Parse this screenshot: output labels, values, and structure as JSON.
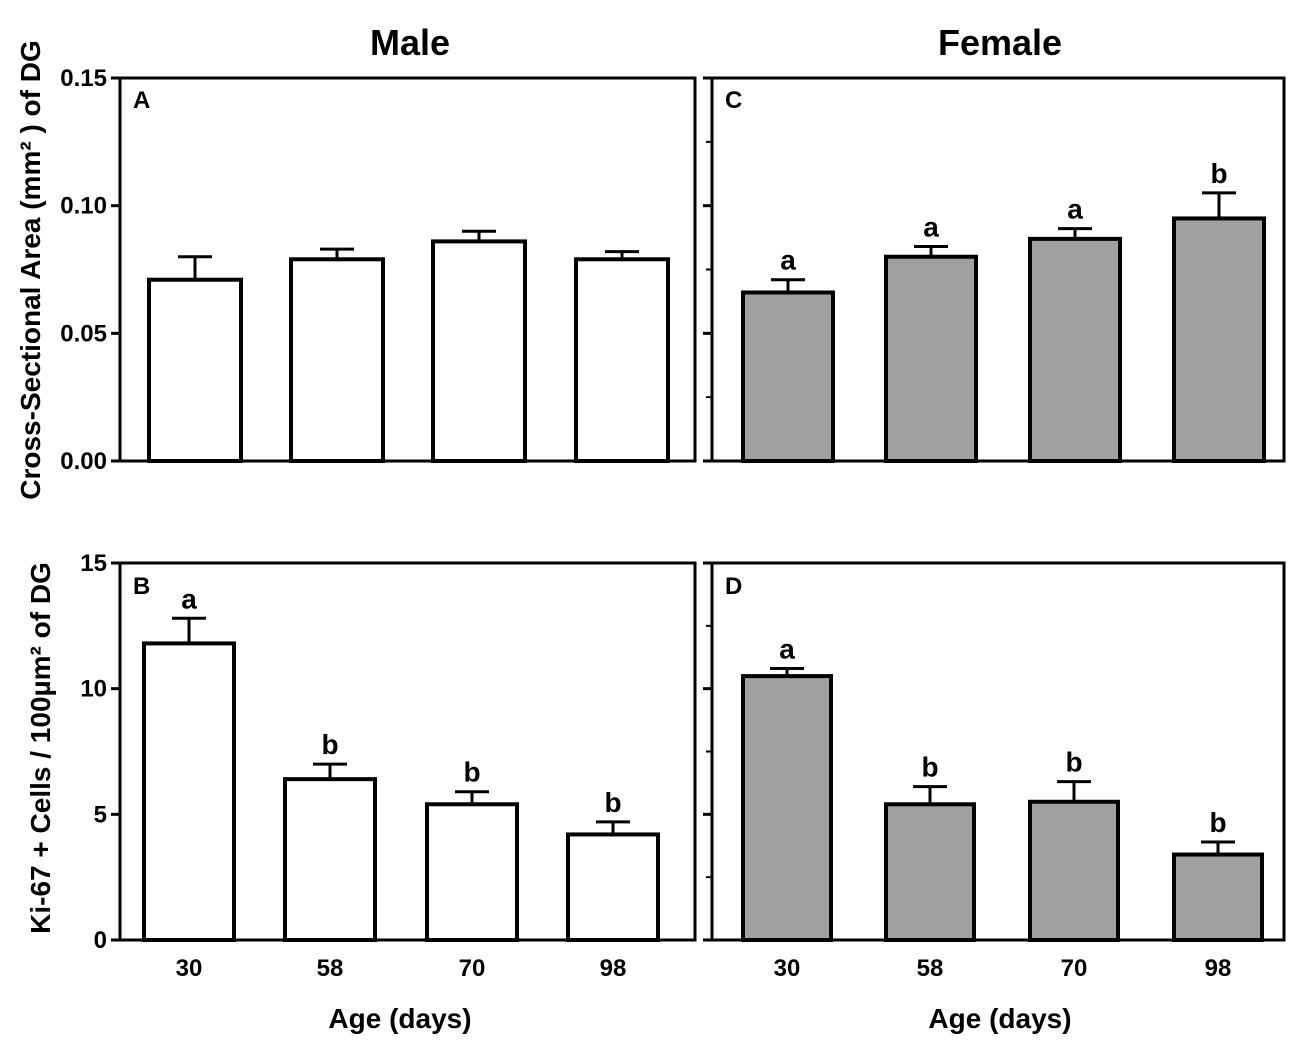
{
  "column_titles": [
    "Male",
    "Female"
  ],
  "y_axis_titles": {
    "top": "Cross-Sectional Area (mm² ) of  DG",
    "bottom": "Ki-67 + Cells / 100µm² of DG"
  },
  "x_axis_title": "Age (days)",
  "colors": {
    "male_bar": "#ffffff",
    "female_bar": "#a0a0a2",
    "stroke": "#000000"
  },
  "chart_data": [
    {
      "type": "bar",
      "panel": "A",
      "group": "Male",
      "ylabel": "Cross-Sectional Area (mm² ) of  DG",
      "xlabel": "",
      "categories": [
        "30",
        "58",
        "70",
        "98"
      ],
      "values": [
        0.071,
        0.079,
        0.086,
        0.079
      ],
      "errors": [
        0.009,
        0.004,
        0.004,
        0.003
      ],
      "labels": [
        "",
        "",
        "",
        ""
      ],
      "ylim": [
        0,
        0.15
      ],
      "yticks": [
        0.0,
        0.05,
        0.1,
        0.15
      ],
      "ytick_labels": [
        "0.00",
        "0.05",
        "0.10",
        "0.15"
      ],
      "minor_ticks": []
    },
    {
      "type": "bar",
      "panel": "C",
      "group": "Female",
      "ylabel": "",
      "xlabel": "",
      "categories": [
        "30",
        "58",
        "70",
        "98"
      ],
      "values": [
        0.066,
        0.08,
        0.087,
        0.095
      ],
      "errors": [
        0.005,
        0.004,
        0.004,
        0.01
      ],
      "labels": [
        "a",
        "a",
        "a",
        "b"
      ],
      "ylim": [
        0,
        0.15
      ],
      "yticks": [
        0.0,
        0.05,
        0.1,
        0.15
      ],
      "ytick_labels": [
        "",
        "",
        "",
        ""
      ],
      "minor_ticks": [
        0.025,
        0.075,
        0.125
      ]
    },
    {
      "type": "bar",
      "panel": "B",
      "group": "Male",
      "ylabel": "Ki-67 + Cells / 100µm² of DG",
      "xlabel": "Age (days)",
      "categories": [
        "30",
        "58",
        "70",
        "98"
      ],
      "values": [
        11.8,
        6.4,
        5.4,
        4.2
      ],
      "errors": [
        1.0,
        0.6,
        0.5,
        0.5
      ],
      "labels": [
        "a",
        "b",
        "b",
        "b"
      ],
      "ylim": [
        0,
        15
      ],
      "yticks": [
        0,
        5,
        10,
        15
      ],
      "ytick_labels": [
        "0",
        "5",
        "10",
        "15"
      ],
      "minor_ticks": []
    },
    {
      "type": "bar",
      "panel": "D",
      "group": "Female",
      "ylabel": "",
      "xlabel": "Age (days)",
      "categories": [
        "30",
        "58",
        "70",
        "98"
      ],
      "values": [
        10.5,
        5.4,
        5.5,
        3.4
      ],
      "errors": [
        0.3,
        0.7,
        0.8,
        0.5
      ],
      "labels": [
        "a",
        "b",
        "b",
        "b"
      ],
      "ylim": [
        0,
        15
      ],
      "yticks": [
        0,
        5,
        10,
        15
      ],
      "ytick_labels": [
        "",
        "",
        "",
        ""
      ],
      "minor_ticks": [
        2.5,
        7.5,
        12.5
      ]
    }
  ]
}
